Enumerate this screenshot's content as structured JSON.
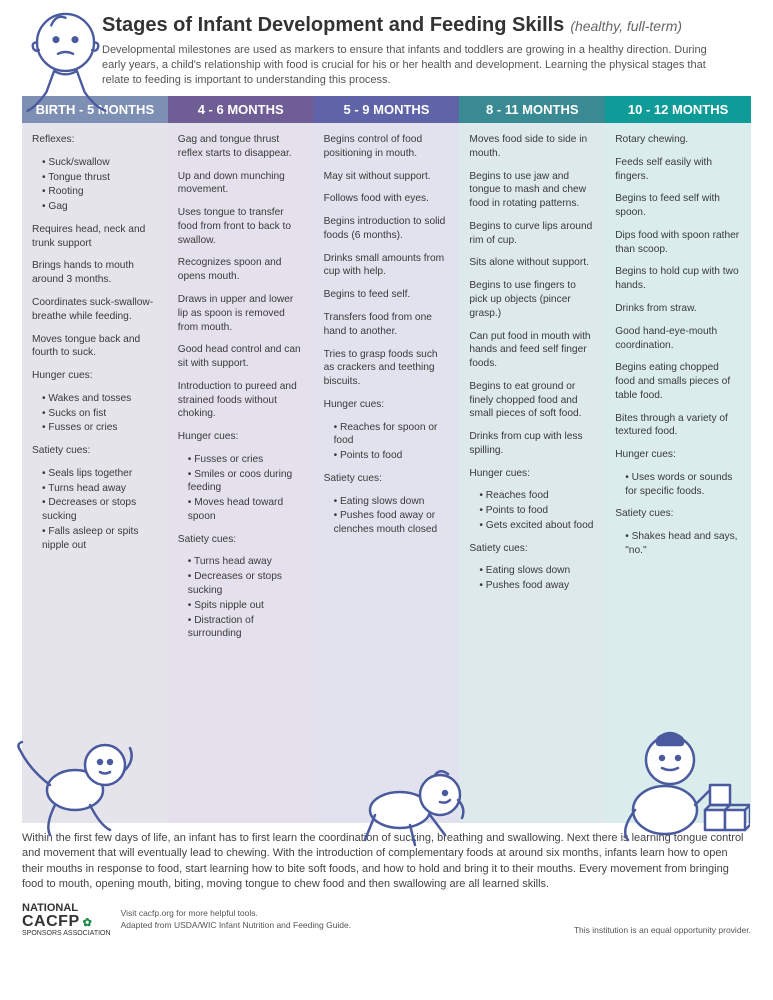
{
  "title": "Stages of Infant Development and Feeding Skills",
  "subtitle": "(healthy, full-term)",
  "intro": "Developmental milestones are used as markers to ensure that infants and toddlers are growing in a healthy direction. During early years, a child's relationship with food is crucial for his or her health and development. Learning the physical stages that relate to feeding is important to understanding this process.",
  "columns": [
    {
      "header": "BIRTH - 5 MONTHS",
      "header_color": "#7d8fb3",
      "body_color": "#e6e4eb",
      "items": [
        {
          "type": "label",
          "text": "Reflexes:"
        },
        {
          "type": "list",
          "items": [
            "Suck/swallow",
            "Tongue thrust",
            "Rooting",
            "Gag"
          ]
        },
        {
          "type": "para",
          "text": "Requires head, neck and trunk support"
        },
        {
          "type": "para",
          "text": "Brings hands to mouth around 3 months."
        },
        {
          "type": "para",
          "text": "Coordinates suck-swallow-breathe while feeding."
        },
        {
          "type": "para",
          "text": "Moves tongue back and fourth to suck."
        },
        {
          "type": "label",
          "text": "Hunger cues:"
        },
        {
          "type": "list",
          "items": [
            "Wakes and tosses",
            "Sucks on fist",
            "Fusses or cries"
          ]
        },
        {
          "type": "label",
          "text": "Satiety cues:"
        },
        {
          "type": "list",
          "items": [
            "Seals lips together",
            "Turns head away",
            "Decreases or stops sucking",
            "Falls asleep or spits nipple out"
          ]
        }
      ]
    },
    {
      "header": "4 - 6 MONTHS",
      "header_color": "#6f5d96",
      "body_color": "#e4e1ec",
      "items": [
        {
          "type": "para",
          "text": "Gag and tongue thrust reflex starts to disappear."
        },
        {
          "type": "para",
          "text": "Up and down munching movement."
        },
        {
          "type": "para",
          "text": "Uses tongue to transfer food from front to back to swallow."
        },
        {
          "type": "para",
          "text": "Recognizes spoon and opens mouth."
        },
        {
          "type": "para",
          "text": "Draws in upper and lower lip as spoon is removed from mouth."
        },
        {
          "type": "para",
          "text": "Good head control and can sit with support."
        },
        {
          "type": "para",
          "text": "Introduction to pureed and strained foods without choking."
        },
        {
          "type": "label",
          "text": "Hunger cues:"
        },
        {
          "type": "list",
          "items": [
            "Fusses or cries",
            "Smiles or coos during feeding",
            "Moves head toward spoon"
          ]
        },
        {
          "type": "label",
          "text": "Satiety cues:"
        },
        {
          "type": "list",
          "items": [
            "Turns head away",
            "Decreases or stops sucking",
            "Spits nipple out",
            "Distraction of surrounding"
          ]
        }
      ]
    },
    {
      "header": "5 - 9 MONTHS",
      "header_color": "#5f63a8",
      "body_color": "#e2e2ee",
      "items": [
        {
          "type": "para",
          "text": "Begins control of food positioning in mouth."
        },
        {
          "type": "para",
          "text": "May sit without support."
        },
        {
          "type": "para",
          "text": "Follows food with eyes."
        },
        {
          "type": "para",
          "text": "Begins introduction to solid foods (6 months)."
        },
        {
          "type": "para",
          "text": "Drinks small amounts from cup with help."
        },
        {
          "type": "para",
          "text": "Begins to feed self."
        },
        {
          "type": "para",
          "text": "Transfers food from one hand to another."
        },
        {
          "type": "para",
          "text": "Tries to grasp foods such as crackers and teething biscuits."
        },
        {
          "type": "label",
          "text": "Hunger cues:"
        },
        {
          "type": "list",
          "items": [
            "Reaches for spoon or food",
            "Points to food"
          ]
        },
        {
          "type": "label",
          "text": "Satiety cues:"
        },
        {
          "type": "list",
          "items": [
            "Eating slows down",
            "Pushes food away or clenches mouth closed"
          ]
        }
      ]
    },
    {
      "header": "8 - 11 MONTHS",
      "header_color": "#3a8a93",
      "body_color": "#dde9eb",
      "items": [
        {
          "type": "para",
          "text": "Moves food side to side in mouth."
        },
        {
          "type": "para",
          "text": "Begins to use jaw and tongue to mash and chew food in rotating patterns."
        },
        {
          "type": "para",
          "text": "Begins to curve lips around rim of cup."
        },
        {
          "type": "para",
          "text": "Sits alone without support."
        },
        {
          "type": "para",
          "text": "Begins to use fingers to pick up objects (pincer grasp.)"
        },
        {
          "type": "para",
          "text": "Can put food in mouth with hands and feed self finger foods."
        },
        {
          "type": "para",
          "text": "Begins to eat ground or finely chopped food and small pieces of soft food."
        },
        {
          "type": "para",
          "text": "Drinks from cup with less spilling."
        },
        {
          "type": "label",
          "text": "Hunger cues:"
        },
        {
          "type": "list",
          "items": [
            "Reaches food",
            "Points to food",
            "Gets excited about food"
          ]
        },
        {
          "type": "label",
          "text": "Satiety cues:"
        },
        {
          "type": "list",
          "items": [
            "Eating slows down",
            "Pushes food away"
          ]
        }
      ]
    },
    {
      "header": "10 - 12 MONTHS",
      "header_color": "#0f9b98",
      "body_color": "#daedec",
      "items": [
        {
          "type": "para",
          "text": "Rotary chewing."
        },
        {
          "type": "para",
          "text": "Feeds self easily with fingers."
        },
        {
          "type": "para",
          "text": "Begins to feed self with spoon."
        },
        {
          "type": "para",
          "text": "Dips food with spoon rather than scoop."
        },
        {
          "type": "para",
          "text": "Begins to hold cup with two hands."
        },
        {
          "type": "para",
          "text": "Drinks from straw."
        },
        {
          "type": "para",
          "text": "Good hand-eye-mouth coordination."
        },
        {
          "type": "para",
          "text": "Begins eating chopped food and smalls pieces of table food."
        },
        {
          "type": "para",
          "text": "Bites through a variety of textured food."
        },
        {
          "type": "label",
          "text": "Hunger cues:"
        },
        {
          "type": "list",
          "items": [
            "Uses words or sounds for specific foods."
          ]
        },
        {
          "type": "label",
          "text": "Satiety cues:"
        },
        {
          "type": "list",
          "items": [
            "Shakes head and says, \"no.\""
          ]
        }
      ]
    }
  ],
  "bottom": "Within the first few days of life, an infant has to first learn the coordination of sucking, breathing and swallowing. Next there is learning tongue control and movement that will eventually lead to chewing. With the introduction of complementary foods at around six months, infants learn how to open their mouths in response to food, start learning how to bite soft foods, and how to hold and bring it to their mouths. Every movement from bringing food to mouth, opening mouth, biting, moving tongue to chew food and then swallowing are all learned skills.",
  "footer": {
    "org1": "NATIONAL",
    "org2": "CACFP",
    "org3": "SPONSORS ASSOCIATION",
    "visit": "Visit cacfp.org for more helpful tools.",
    "adapted": "Adapted from USDA/WIC Infant Nutrition and Feeding Guide.",
    "equal": "This institution is an equal opportunity provider."
  },
  "baby_outline": "#4a5a9e",
  "baby_fill": "#ffffff"
}
